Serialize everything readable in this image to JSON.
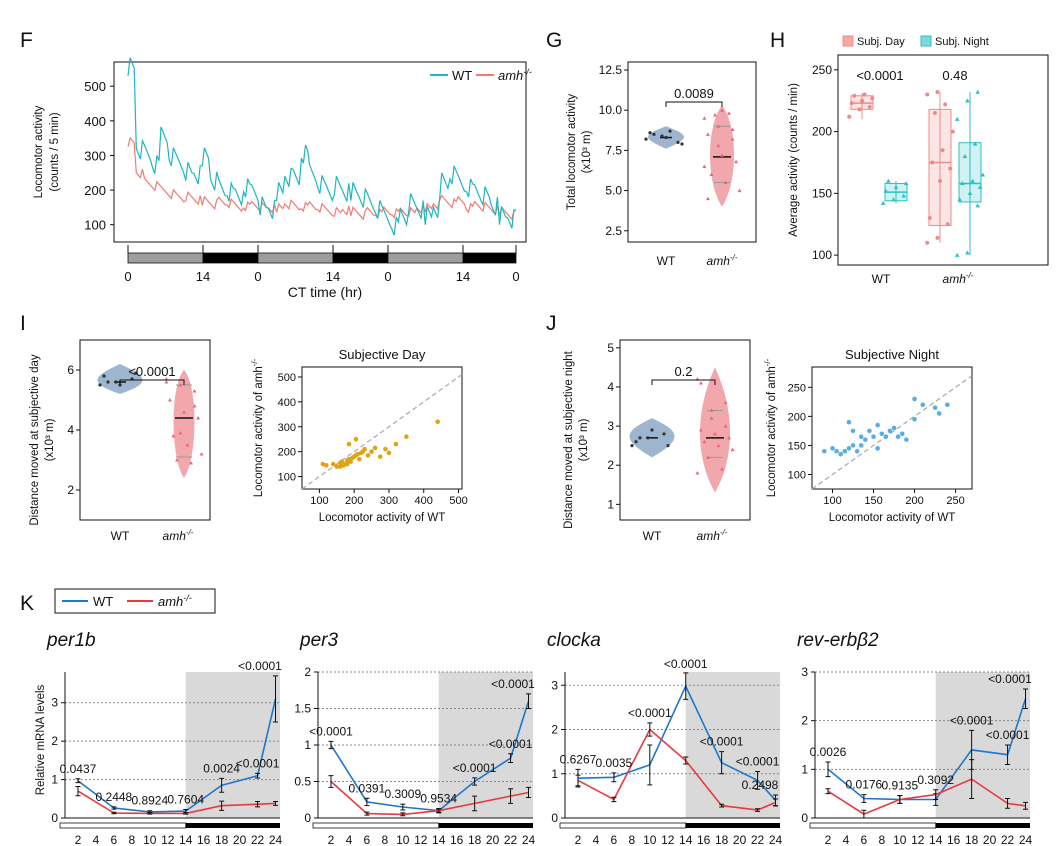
{
  "colors": {
    "wt": "#1fb6bf",
    "mut": "#ef7b74",
    "violin_wt": "#9eb5cf",
    "violin_mut": "#f2a7ad",
    "box_day": "#f08a8a",
    "box_night": "#2cc0c4",
    "scatter_day": "#e0a412",
    "scatter_night": "#58ade3",
    "k_wt": "#1f77c9",
    "k_mut": "#e8393e",
    "shade": "#d9d9d9"
  },
  "panels": {
    "F": {
      "letter": "F",
      "legend_wt": "WT",
      "legend_mut": "amh",
      "legend_mut_sup": "-/-",
      "xlabel": "CT time (hr)"
    },
    "G": {
      "letter": "G",
      "ylabel_1": "Total locomotor activity",
      "ylabel_2": "(x10³ m)",
      "pvalue": "0.0089",
      "cat_wt": "WT",
      "cat_mut": "amh",
      "cat_mut_sup": "-/-"
    },
    "H": {
      "letter": "H",
      "legend_day": "Subj. Day",
      "legend_night": "Subj. Night",
      "ylabel": "Average activity (counts / min)",
      "p1": "<0.0001",
      "p2": "0.48",
      "cat_wt": "WT",
      "cat_mut": "amh",
      "cat_mut_sup": "-/-"
    },
    "I": {
      "letter": "I",
      "ylabel_1": "Distance moved at subjective day",
      "ylabel_2": "(x10³ m)",
      "pvalue": "<0.0001",
      "cat_wt": "WT",
      "cat_mut": "amh",
      "cat_mut_sup": "-/-",
      "scatter_title": "Subjective Day",
      "scatter_xlabel": "Locomotor activity of WT",
      "scatter_ylabel": "Locomotor activity of amh"
    },
    "J": {
      "letter": "J",
      "ylabel_1": "Distance moved at subjective night",
      "ylabel_2": "(x10³ m)",
      "pvalue": "0.2",
      "cat_wt": "WT",
      "cat_mut": "amh",
      "cat_mut_sup": "-/-",
      "scatter_title": "Subjective Night",
      "scatter_xlabel": "Locomotor activity of WT",
      "scatter_ylabel": "Locomotor activity of amh"
    },
    "K": {
      "letter": "K",
      "legend_wt": "WT",
      "legend_mut": "amh",
      "legend_mut_sup": "-/-",
      "ylabel": "Relative mRNA levels"
    }
  },
  "chart_data": [
    {
      "id": "F",
      "type": "line",
      "ylabel": "Locomotor activity (counts / 5 min)",
      "xlabel": "CT time (hr)",
      "ylim": [
        50,
        570
      ],
      "yticks": [
        100,
        200,
        300,
        400,
        500
      ],
      "xtick_labels": [
        "0",
        "14",
        "0",
        "14",
        "0",
        "14",
        "0"
      ],
      "light_dark_bar": [
        "light",
        "dark",
        "light",
        "dark",
        "light",
        "dark"
      ],
      "series": [
        {
          "name": "WT",
          "values": [
            560,
            320,
            300,
            270,
            360,
            300,
            280,
            250,
            240,
            300,
            230,
            200,
            190,
            180,
            210,
            200,
            150,
            140,
            200,
            240,
            230,
            300,
            250,
            220,
            200,
            210,
            190,
            200,
            180,
            160,
            140,
            120,
            100,
            130,
            160,
            140,
            130,
            150,
            220,
            240,
            220,
            210,
            200,
            180,
            150,
            130,
            120,
            110
          ]
        },
        {
          "name": "amh-/-",
          "values": [
            340,
            250,
            220,
            210,
            200,
            190,
            180,
            180,
            170,
            170,
            160,
            165,
            160,
            150,
            155,
            160,
            150,
            145,
            150,
            160,
            150,
            150,
            155,
            150,
            140,
            135,
            140,
            140,
            130,
            135,
            130,
            140,
            135,
            140,
            135,
            145,
            150,
            160,
            170,
            160,
            170,
            150,
            160,
            150,
            140,
            140,
            130,
            130
          ]
        }
      ]
    },
    {
      "id": "G",
      "type": "violin",
      "ylabel": "Total locomotor activity (x10³ m)",
      "categories": [
        "WT",
        "amh-/-"
      ],
      "ylim": [
        1.8,
        13
      ],
      "yticks": [
        2.5,
        5.0,
        7.5,
        10.0,
        12.5
      ],
      "wt_points": [
        8.2,
        8.4,
        8.0,
        8.6,
        8.3,
        7.9,
        8.5,
        8.7
      ],
      "wt_median": 8.3,
      "mut_points": [
        9.5,
        9.0,
        8.8,
        8.5,
        7.2,
        6.8,
        6.0,
        5.5,
        5.0,
        9.7,
        9.8,
        6.5,
        7.8,
        8.2,
        4.5,
        10.0
      ],
      "mut_median": 7.1,
      "mut_q1": 5.5,
      "mut_q3": 9.0,
      "pvalue": "0.0089"
    },
    {
      "id": "H",
      "type": "box",
      "ylabel": "Average activity (counts / min)",
      "categories": [
        "WT",
        "amh-/-"
      ],
      "ylim": [
        92,
        262
      ],
      "yticks": [
        100,
        150,
        200,
        250
      ],
      "series": [
        {
          "name": "Subj. Day",
          "groups": [
            {
              "min": 210,
              "q1": 218,
              "median": 223,
              "q3": 229,
              "max": 231,
              "points": [
                212,
                218,
                220,
                223,
                225,
                227,
                229,
                230
              ]
            },
            {
              "min": 110,
              "q1": 124,
              "median": 175,
              "q3": 218,
              "max": 232,
              "points": [
                110,
                114,
                125,
                130,
                160,
                170,
                175,
                185,
                200,
                215,
                222,
                230,
                232
              ]
            }
          ]
        },
        {
          "name": "Subj. Night",
          "groups": [
            {
              "min": 142,
              "q1": 144,
              "median": 151,
              "q3": 158,
              "max": 160,
              "points": [
                142,
                145,
                148,
                152,
                155,
                158,
                160
              ]
            },
            {
              "min": 100,
              "q1": 143,
              "median": 158,
              "q3": 191,
              "max": 232,
              "points": [
                100,
                102,
                140,
                145,
                150,
                155,
                158,
                160,
                165,
                180,
                190,
                210,
                225,
                232
              ]
            }
          ]
        }
      ],
      "pvalues": [
        "<0.0001",
        "0.48"
      ]
    },
    {
      "id": "I",
      "type": "violin",
      "ylabel": "Distance moved at subjective day (x10³ m)",
      "categories": [
        "WT",
        "amh-/-"
      ],
      "ylim": [
        1.0,
        7.0
      ],
      "yticks": [
        2,
        4,
        6
      ],
      "wt_points": [
        5.5,
        5.6,
        5.7,
        5.8,
        5.5,
        5.9,
        5.6
      ],
      "wt_median": 5.6,
      "mut_points": [
        5.6,
        5.5,
        5.3,
        5.0,
        4.6,
        4.4,
        3.8,
        3.5,
        3.2,
        3.0,
        2.9,
        5.7,
        3.9,
        4.8
      ],
      "mut_median": 4.4,
      "mut_q1": 3.1,
      "mut_q3": 5.5,
      "pvalue": "<0.0001"
    },
    {
      "id": "I-scatter",
      "type": "scatter",
      "title": "Subjective Day",
      "xlabel": "Locomotor activity of WT",
      "ylabel": "Locomotor activity of amh-/-",
      "xlim": [
        50,
        510
      ],
      "ylim": [
        50,
        540
      ],
      "xticks": [
        100,
        200,
        300,
        400,
        500
      ],
      "yticks": [
        100,
        200,
        300,
        400,
        500
      ],
      "points": [
        [
          110,
          150
        ],
        [
          120,
          145
        ],
        [
          140,
          150
        ],
        [
          150,
          140
        ],
        [
          160,
          155
        ],
        [
          165,
          160
        ],
        [
          170,
          145
        ],
        [
          175,
          150
        ],
        [
          180,
          165
        ],
        [
          185,
          170
        ],
        [
          190,
          160
        ],
        [
          195,
          175
        ],
        [
          200,
          180
        ],
        [
          205,
          185
        ],
        [
          210,
          190
        ],
        [
          215,
          170
        ],
        [
          220,
          195
        ],
        [
          225,
          200
        ],
        [
          230,
          210
        ],
        [
          240,
          185
        ],
        [
          250,
          200
        ],
        [
          260,
          215
        ],
        [
          275,
          180
        ],
        [
          290,
          210
        ],
        [
          300,
          195
        ],
        [
          320,
          230
        ],
        [
          350,
          260
        ],
        [
          440,
          320
        ],
        [
          185,
          230
        ],
        [
          205,
          250
        ],
        [
          160,
          140
        ],
        [
          180,
          150
        ]
      ]
    },
    {
      "id": "J",
      "type": "violin",
      "ylabel": "Distance moved at subjective night (x10³ m)",
      "categories": [
        "WT",
        "amh-/-"
      ],
      "ylim": [
        0.6,
        5.2
      ],
      "yticks": [
        1,
        2,
        3,
        4,
        5
      ],
      "wt_points": [
        2.5,
        2.7,
        2.8,
        2.6,
        2.9,
        2.5,
        2.7
      ],
      "wt_median": 2.7,
      "mut_points": [
        4.2,
        3.4,
        3.0,
        2.9,
        2.8,
        2.7,
        2.6,
        2.5,
        2.4,
        2.2,
        1.9,
        1.8,
        3.2,
        3.6,
        4.1
      ],
      "mut_median": 2.7,
      "mut_q1": 2.2,
      "mut_q3": 3.4,
      "pvalue": "0.2"
    },
    {
      "id": "J-scatter",
      "type": "scatter",
      "title": "Subjective Night",
      "xlabel": "Locomotor activity of WT",
      "ylabel": "Locomotor activity of amh-/-",
      "xlim": [
        75,
        270
      ],
      "ylim": [
        75,
        285
      ],
      "xticks": [
        100,
        150,
        200,
        250
      ],
      "yticks": [
        100,
        150,
        200,
        250
      ],
      "points": [
        [
          90,
          140
        ],
        [
          100,
          145
        ],
        [
          110,
          135
        ],
        [
          115,
          140
        ],
        [
          120,
          145
        ],
        [
          125,
          150
        ],
        [
          130,
          140
        ],
        [
          135,
          165
        ],
        [
          140,
          160
        ],
        [
          145,
          175
        ],
        [
          150,
          165
        ],
        [
          155,
          185
        ],
        [
          160,
          170
        ],
        [
          165,
          165
        ],
        [
          170,
          175
        ],
        [
          175,
          180
        ],
        [
          180,
          165
        ],
        [
          185,
          170
        ],
        [
          190,
          160
        ],
        [
          200,
          195
        ],
        [
          210,
          220
        ],
        [
          225,
          215
        ],
        [
          230,
          205
        ],
        [
          240,
          220
        ],
        [
          200,
          230
        ],
        [
          155,
          145
        ],
        [
          135,
          150
        ],
        [
          120,
          190
        ],
        [
          125,
          175
        ],
        [
          105,
          140
        ]
      ]
    },
    {
      "id": "K-per1b",
      "type": "line",
      "title": "per1b",
      "x": [
        2,
        6,
        10,
        14,
        18,
        22,
        24
      ],
      "xtick_labels": [
        "2",
        "4",
        "6",
        "8",
        "10",
        "12",
        "14",
        "16",
        "18",
        "20",
        "22",
        "24"
      ],
      "ylim": [
        0,
        3.8
      ],
      "yticks": [
        0,
        1,
        2,
        3
      ],
      "series": [
        {
          "name": "WT",
          "values": [
            0.97,
            0.26,
            0.16,
            0.18,
            0.85,
            1.1,
            3.1
          ],
          "err": [
            0.05,
            0.03,
            0.03,
            0.04,
            0.18,
            0.06,
            0.6
          ]
        },
        {
          "name": "amh-/-",
          "values": [
            0.7,
            0.13,
            0.12,
            0.12,
            0.32,
            0.36,
            0.38
          ],
          "err": [
            0.12,
            0.02,
            0.02,
            0.02,
            0.12,
            0.07,
            0.05
          ]
        }
      ],
      "pvalues": [
        "0.0437",
        "0.2448",
        "0.8924",
        "0.7604",
        "0.0024",
        "<0.0001",
        "<0.0001"
      ]
    },
    {
      "id": "K-per3",
      "type": "line",
      "title": "per3",
      "x": [
        2,
        6,
        10,
        14,
        18,
        22,
        24
      ],
      "xtick_labels": [
        "2",
        "4",
        "6",
        "8",
        "10",
        "12",
        "14",
        "16",
        "18",
        "20",
        "22",
        "24"
      ],
      "ylim": [
        0,
        2.0
      ],
      "yticks": [
        0,
        0.5,
        1.0,
        1.5,
        2.0
      ],
      "series": [
        {
          "name": "WT",
          "values": [
            1.0,
            0.22,
            0.15,
            0.1,
            0.5,
            0.82,
            1.6
          ],
          "err": [
            0.05,
            0.05,
            0.04,
            0.02,
            0.05,
            0.06,
            0.1
          ]
        },
        {
          "name": "amh-/-",
          "values": [
            0.5,
            0.06,
            0.05,
            0.1,
            0.2,
            0.3,
            0.35
          ],
          "err": [
            0.08,
            0.02,
            0.02,
            0.03,
            0.1,
            0.1,
            0.07
          ]
        }
      ],
      "pvalues": [
        "<0.0001",
        "0.0391",
        "0.3009",
        "0.9534",
        "<0.0001",
        "<0.0001",
        "<0.0001"
      ]
    },
    {
      "id": "K-clocka",
      "type": "line",
      "title": "clocka",
      "x": [
        2,
        6,
        10,
        14,
        18,
        22,
        24
      ],
      "xtick_labels": [
        "2",
        "4",
        "6",
        "8",
        "10",
        "12",
        "14",
        "16",
        "18",
        "20",
        "22",
        "24"
      ],
      "ylim": [
        0,
        3.3
      ],
      "yticks": [
        0,
        1,
        2,
        3
      ],
      "series": [
        {
          "name": "WT",
          "values": [
            0.9,
            0.92,
            1.2,
            2.98,
            1.25,
            0.85,
            0.4
          ],
          "err": [
            0.2,
            0.1,
            0.45,
            0.3,
            0.25,
            0.2,
            0.12
          ]
        },
        {
          "name": "amh-/-",
          "values": [
            0.85,
            0.42,
            2.0,
            1.3,
            0.28,
            0.18,
            0.35
          ],
          "err": [
            0.12,
            0.05,
            0.15,
            0.08,
            0.03,
            0.03,
            0.08
          ]
        }
      ],
      "pvalues": [
        "0.6267",
        "0.0035",
        "<0.0001",
        "<0.0001",
        "<0.0001",
        "<0.0001",
        "0.2498"
      ]
    },
    {
      "id": "K-rev-erbb2",
      "type": "line",
      "title": "rev-erbβ2",
      "x": [
        2,
        6,
        10,
        14,
        18,
        22,
        24
      ],
      "xtick_labels": [
        "2",
        "4",
        "6",
        "8",
        "10",
        "12",
        "14",
        "16",
        "18",
        "20",
        "22",
        "24"
      ],
      "ylim": [
        0,
        3.0
      ],
      "yticks": [
        0,
        1,
        2,
        3
      ],
      "series": [
        {
          "name": "WT",
          "values": [
            1.0,
            0.4,
            0.38,
            0.38,
            1.4,
            1.3,
            2.45
          ],
          "err": [
            0.15,
            0.08,
            0.08,
            0.12,
            0.4,
            0.2,
            0.2
          ]
        },
        {
          "name": "amh-/-",
          "values": [
            0.55,
            0.08,
            0.38,
            0.48,
            0.8,
            0.3,
            0.25
          ],
          "err": [
            0.05,
            0.08,
            0.08,
            0.1,
            0.4,
            0.1,
            0.07
          ]
        }
      ],
      "pvalues": [
        "0.0026",
        "0.0176",
        "0.9135",
        "0.3092",
        "<0.0001",
        "<0.0001",
        "<0.0001"
      ]
    }
  ]
}
